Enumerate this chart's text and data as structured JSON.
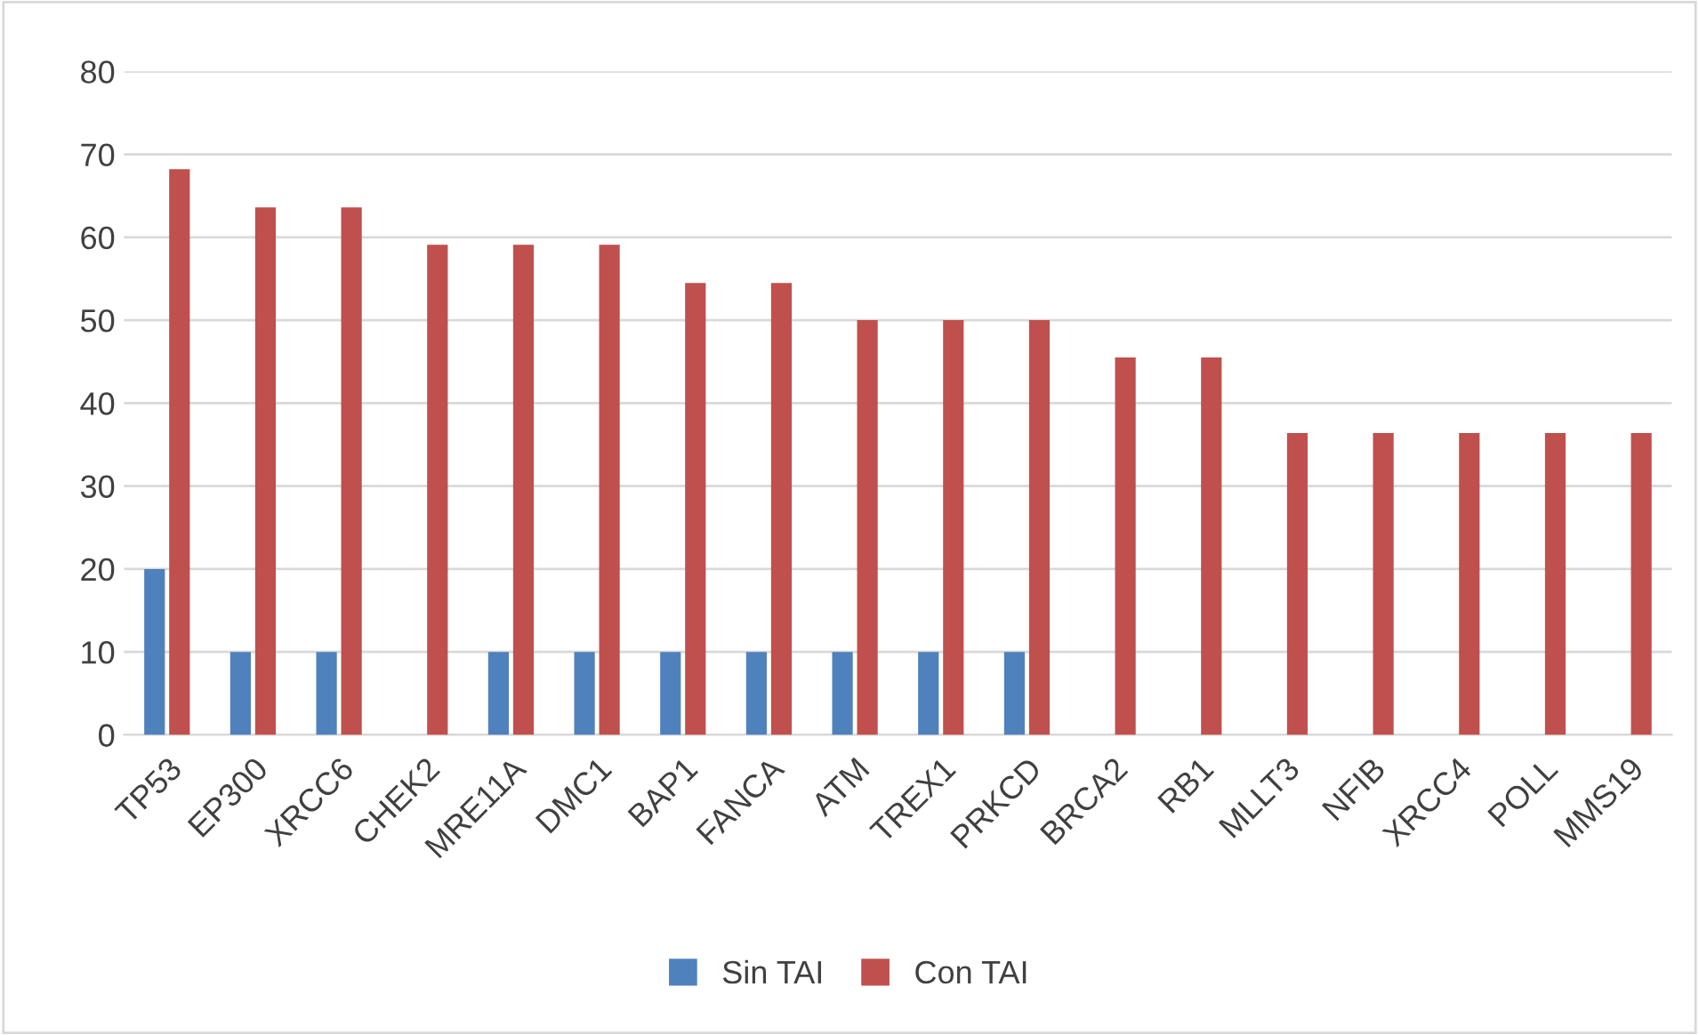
{
  "chart_data": {
    "type": "bar",
    "categories": [
      "TP53",
      "EP300",
      "XRCC6",
      "CHEK2",
      "MRE11A",
      "DMC1",
      "BAP1",
      "FANCA",
      "ATM",
      "TREX1",
      "PRKCD",
      "BRCA2",
      "RB1",
      "MLLT3",
      "NFIB",
      "XRCC4",
      "POLL",
      "MMS19"
    ],
    "series": [
      {
        "name": "Sin TAI",
        "color": "#4f81bd",
        "values": [
          20,
          10,
          10,
          0,
          10,
          10,
          10,
          10,
          10,
          10,
          10,
          0,
          0,
          0,
          0,
          0,
          0,
          0
        ]
      },
      {
        "name": "Con TAI",
        "color": "#c0504d",
        "values": [
          68.2,
          63.6,
          63.6,
          59.1,
          59.1,
          59.1,
          54.5,
          54.5,
          50,
          50,
          50,
          45.5,
          45.5,
          36.4,
          36.4,
          36.4,
          36.4,
          36.4
        ]
      }
    ],
    "ylim": [
      0,
      80
    ],
    "yticks": [
      0,
      10,
      20,
      30,
      40,
      50,
      60,
      70,
      80
    ],
    "grid": "y",
    "legend": "bottom"
  }
}
